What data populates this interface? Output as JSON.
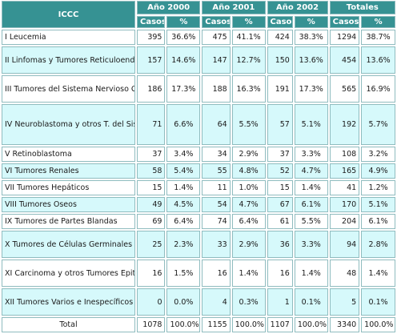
{
  "headers": {
    "icc": "ICCC",
    "years": [
      "Año 2000",
      "Año 2001",
      "Año 2002"
    ],
    "totals": "Totales",
    "casos": "Casos",
    "pct": "%"
  },
  "rows": [
    {
      "label": "I Leucemia",
      "y2000": [
        "395",
        "36.6%"
      ],
      "y2001": [
        "475",
        "41.1%"
      ],
      "y2002": [
        "424",
        "38.3%"
      ],
      "total": [
        "1294",
        "38.7%"
      ]
    },
    {
      "label": "II Linfomas y Tumores Reticuloendoteliales",
      "y2000": [
        "157",
        "14.6%"
      ],
      "y2001": [
        "147",
        "12.7%"
      ],
      "y2002": [
        "150",
        "13.6%"
      ],
      "total": [
        "454",
        "13.6%"
      ]
    },
    {
      "label": "III Tumores del Sistema Nervioso Central",
      "y2000": [
        "186",
        "17.3%"
      ],
      "y2001": [
        "188",
        "16.3%"
      ],
      "y2002": [
        "191",
        "17.3%"
      ],
      "total": [
        "565",
        "16.9%"
      ]
    },
    {
      "label": "IV Neuroblastoma y otros T. del Sistema Nervioso Periferico",
      "y2000": [
        "71",
        "6.6%"
      ],
      "y2001": [
        "64",
        "5.5%"
      ],
      "y2002": [
        "57",
        "5.1%"
      ],
      "total": [
        "192",
        "5.7%"
      ]
    },
    {
      "label": "V Retinoblastoma",
      "y2000": [
        "37",
        "3.4%"
      ],
      "y2001": [
        "34",
        "2.9%"
      ],
      "y2002": [
        "37",
        "3.3%"
      ],
      "total": [
        "108",
        "3.2%"
      ]
    },
    {
      "label": "VI Tumores Renales",
      "y2000": [
        "58",
        "5.4%"
      ],
      "y2001": [
        "55",
        "4.8%"
      ],
      "y2002": [
        "52",
        "4.7%"
      ],
      "total": [
        "165",
        "4.9%"
      ]
    },
    {
      "label": "VII Tumores Hepáticos",
      "y2000": [
        "15",
        "1.4%"
      ],
      "y2001": [
        "11",
        "1.0%"
      ],
      "y2002": [
        "15",
        "1.4%"
      ],
      "total": [
        "41",
        "1.2%"
      ]
    },
    {
      "label": "VIII Tumores Oseos",
      "y2000": [
        "49",
        "4.5%"
      ],
      "y2001": [
        "54",
        "4.7%"
      ],
      "y2002": [
        "67",
        "6.1%"
      ],
      "total": [
        "170",
        "5.1%"
      ]
    },
    {
      "label": "IX Tumores de Partes Blandas",
      "y2000": [
        "69",
        "6.4%"
      ],
      "y2001": [
        "74",
        "6.4%"
      ],
      "y2002": [
        "61",
        "5.5%"
      ],
      "total": [
        "204",
        "6.1%"
      ]
    },
    {
      "label": "X Tumores de Células Germinales",
      "y2000": [
        "25",
        "2.3%"
      ],
      "y2001": [
        "33",
        "2.9%"
      ],
      "y2002": [
        "36",
        "3.3%"
      ],
      "total": [
        "94",
        "2.8%"
      ]
    },
    {
      "label": "XI Carcinoma y otros Tumores Epiteliales",
      "y2000": [
        "16",
        "1.5%"
      ],
      "y2001": [
        "16",
        "1.4%"
      ],
      "y2002": [
        "16",
        "1.4%"
      ],
      "total": [
        "48",
        "1.4%"
      ]
    },
    {
      "label": "XII Tumores Varios e Inespecíficos",
      "y2000": [
        "0",
        "0.0%"
      ],
      "y2001": [
        "4",
        "0.3%"
      ],
      "y2002": [
        "1",
        "0.1%"
      ],
      "total": [
        "5",
        "0.1%"
      ]
    }
  ],
  "total_row": {
    "label": "Total",
    "y2000": [
      "1078",
      "100.0%"
    ],
    "y2001": [
      "1155",
      "100.0%"
    ],
    "y2002": [
      "1107",
      "100.0%"
    ],
    "total": [
      "3340",
      "100.0%"
    ]
  },
  "colors": {
    "header_bg": "#369293",
    "header_text": "#ffffff",
    "row_alt_bg": "#d6f9fb",
    "border": "#8fbcbf"
  }
}
